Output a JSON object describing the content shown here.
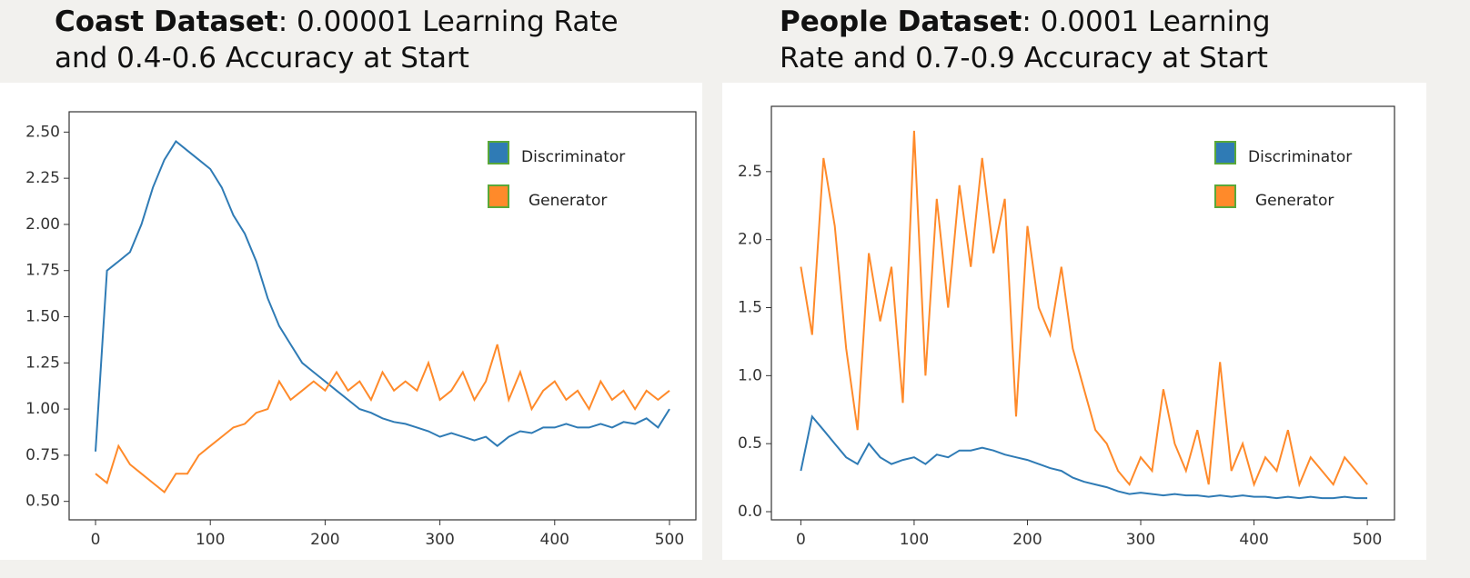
{
  "chart_data": [
    {
      "type": "line",
      "title": "Coast Dataset",
      "subtitle": ": 0.00001 Learning Rate and 0.4-0.6 Accuracy at Start",
      "x": [
        0,
        10,
        20,
        30,
        40,
        50,
        60,
        70,
        80,
        90,
        100,
        110,
        120,
        130,
        140,
        150,
        160,
        170,
        180,
        190,
        200,
        210,
        220,
        230,
        240,
        250,
        260,
        270,
        280,
        290,
        300,
        310,
        320,
        330,
        340,
        350,
        360,
        370,
        380,
        390,
        400,
        410,
        420,
        430,
        440,
        450,
        460,
        470,
        480,
        490,
        500
      ],
      "series": [
        {
          "name": "Discriminator",
          "color": "#2f7bb5",
          "values": [
            0.77,
            1.75,
            1.8,
            1.85,
            2.0,
            2.2,
            2.35,
            2.45,
            2.4,
            2.35,
            2.3,
            2.2,
            2.05,
            1.95,
            1.8,
            1.6,
            1.45,
            1.35,
            1.25,
            1.2,
            1.15,
            1.1,
            1.05,
            1.0,
            0.98,
            0.95,
            0.93,
            0.92,
            0.9,
            0.88,
            0.85,
            0.87,
            0.85,
            0.83,
            0.85,
            0.8,
            0.85,
            0.88,
            0.87,
            0.9,
            0.9,
            0.92,
            0.9,
            0.9,
            0.92,
            0.9,
            0.93,
            0.92,
            0.95,
            0.9,
            1.0
          ]
        },
        {
          "name": "Generator",
          "color": "#ff8a2a",
          "values": [
            0.65,
            0.6,
            0.8,
            0.7,
            0.65,
            0.6,
            0.55,
            0.65,
            0.65,
            0.75,
            0.8,
            0.85,
            0.9,
            0.92,
            0.98,
            1.0,
            1.15,
            1.05,
            1.1,
            1.15,
            1.1,
            1.2,
            1.1,
            1.15,
            1.05,
            1.2,
            1.1,
            1.15,
            1.1,
            1.25,
            1.05,
            1.1,
            1.2,
            1.05,
            1.15,
            1.35,
            1.05,
            1.2,
            1.0,
            1.1,
            1.15,
            1.05,
            1.1,
            1.0,
            1.15,
            1.05,
            1.1,
            1.0,
            1.1,
            1.05,
            1.1
          ]
        }
      ],
      "xlim": [
        -23,
        523
      ],
      "xticks": [
        0,
        100,
        200,
        300,
        400,
        500
      ],
      "ylim": [
        0.4,
        2.61
      ],
      "yticks": [
        {
          "value": 0.5,
          "label": "0.50"
        },
        {
          "value": 0.75,
          "label": "0.75"
        },
        {
          "value": 1.0,
          "label": "1.00"
        },
        {
          "value": 1.25,
          "label": "1.25"
        },
        {
          "value": 1.5,
          "label": "1.50"
        },
        {
          "value": 1.75,
          "label": "1.75"
        },
        {
          "value": 2.0,
          "label": "2.00"
        },
        {
          "value": 2.25,
          "label": "2.25"
        },
        {
          "value": 2.5,
          "label": "2.50"
        }
      ]
    },
    {
      "type": "line",
      "title": "People Dataset",
      "subtitle": ": 0.0001 Learning Rate and 0.7-0.9 Accuracy at Start",
      "x": [
        0,
        10,
        20,
        30,
        40,
        50,
        60,
        70,
        80,
        90,
        100,
        110,
        120,
        130,
        140,
        150,
        160,
        170,
        180,
        190,
        200,
        210,
        220,
        230,
        240,
        250,
        260,
        270,
        280,
        290,
        300,
        310,
        320,
        330,
        340,
        350,
        360,
        370,
        380,
        390,
        400,
        410,
        420,
        430,
        440,
        450,
        460,
        470,
        480,
        490,
        500
      ],
      "series": [
        {
          "name": "Discriminator",
          "color": "#2f7bb5",
          "values": [
            0.3,
            0.7,
            0.6,
            0.5,
            0.4,
            0.35,
            0.5,
            0.4,
            0.35,
            0.38,
            0.4,
            0.35,
            0.42,
            0.4,
            0.45,
            0.45,
            0.47,
            0.45,
            0.42,
            0.4,
            0.38,
            0.35,
            0.32,
            0.3,
            0.25,
            0.22,
            0.2,
            0.18,
            0.15,
            0.13,
            0.14,
            0.13,
            0.12,
            0.13,
            0.12,
            0.12,
            0.11,
            0.12,
            0.11,
            0.12,
            0.11,
            0.11,
            0.1,
            0.11,
            0.1,
            0.11,
            0.1,
            0.1,
            0.11,
            0.1,
            0.1
          ]
        },
        {
          "name": "Generator",
          "color": "#ff8a2a",
          "values": [
            1.8,
            1.3,
            2.6,
            2.1,
            1.2,
            0.6,
            1.9,
            1.4,
            1.8,
            0.8,
            2.8,
            1.0,
            2.3,
            1.5,
            2.4,
            1.8,
            2.6,
            1.9,
            2.3,
            0.7,
            2.1,
            1.5,
            1.3,
            1.8,
            1.2,
            0.9,
            0.6,
            0.5,
            0.3,
            0.2,
            0.4,
            0.3,
            0.9,
            0.5,
            0.3,
            0.6,
            0.2,
            1.1,
            0.3,
            0.5,
            0.2,
            0.4,
            0.3,
            0.6,
            0.2,
            0.4,
            0.3,
            0.2,
            0.4,
            0.3,
            0.2
          ]
        }
      ],
      "xlim": [
        -26,
        524
      ],
      "xticks": [
        0,
        100,
        200,
        300,
        400,
        500
      ],
      "ylim": [
        -0.06,
        2.98
      ],
      "yticks": [
        {
          "value": 0.0,
          "label": "0.0"
        },
        0.5,
        {
          "value": 1.0,
          "label": "1.0"
        },
        1.5,
        {
          "value": 2.0,
          "label": "2.0"
        },
        2.5
      ]
    }
  ]
}
